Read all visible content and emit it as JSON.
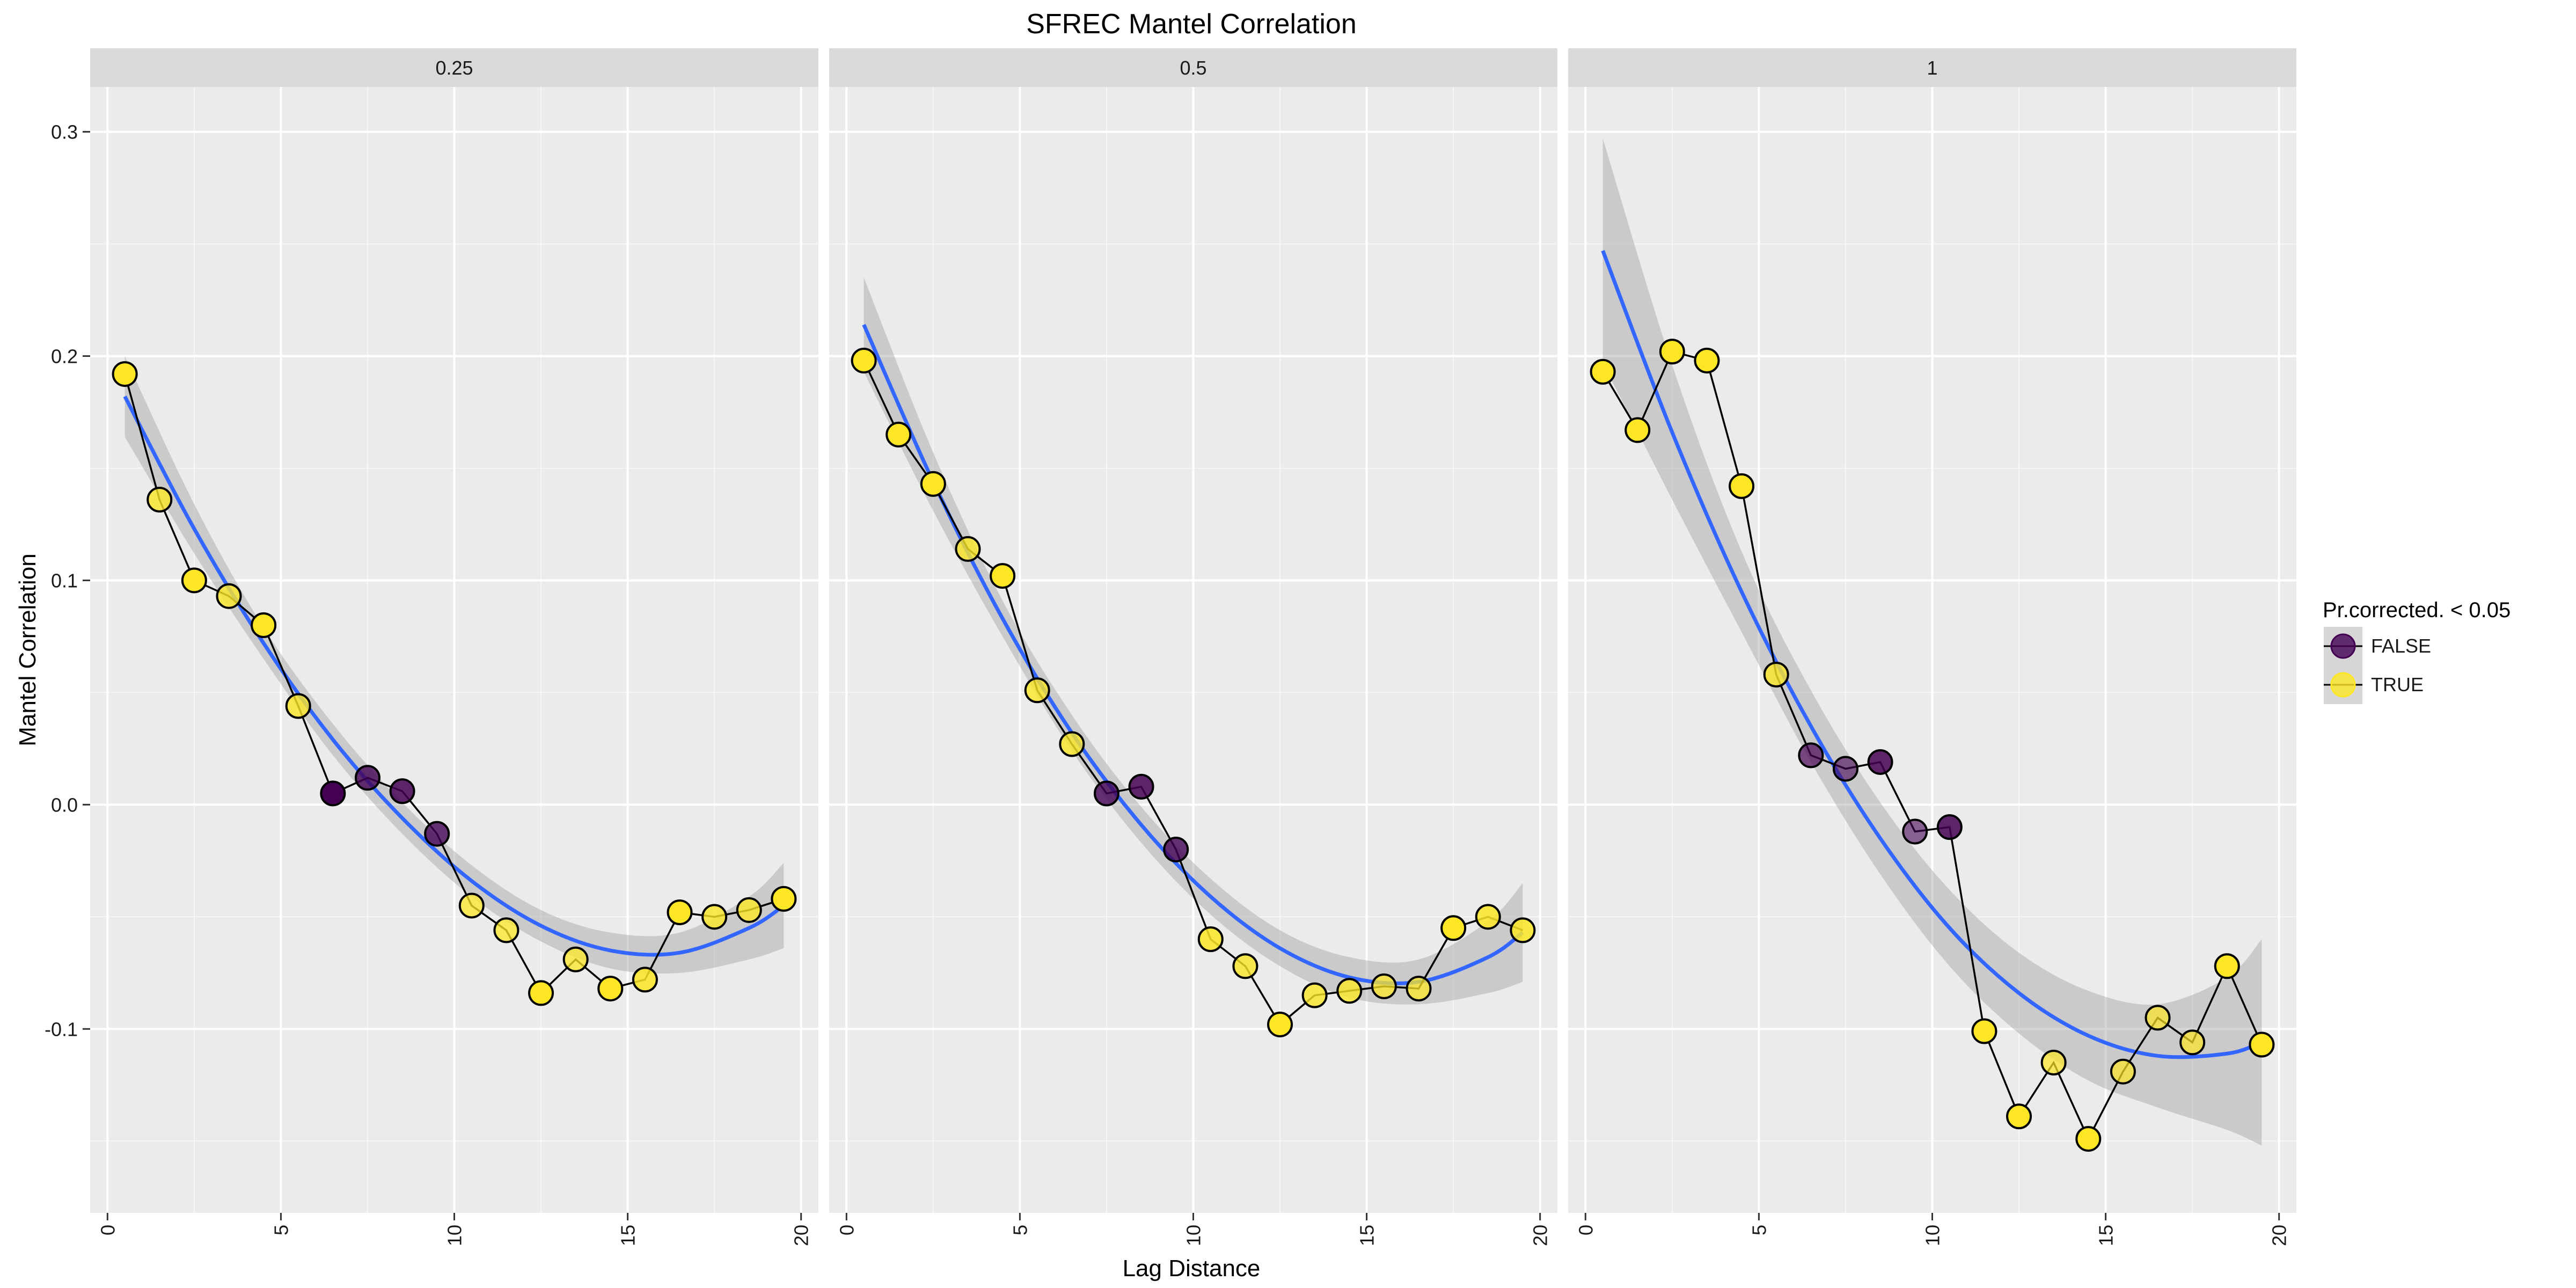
{
  "chart_data": {
    "type": "scatter",
    "title": "SFREC Mantel Correlation",
    "xlabel": "Lag Distance",
    "ylabel": "Mantel Correlation",
    "xlim": [
      -0.5,
      20.5
    ],
    "ylim": [
      -0.182,
      0.32
    ],
    "x_ticks": [
      0,
      5,
      10,
      15,
      20
    ],
    "y_ticks": [
      -0.1,
      0.0,
      0.1,
      0.2,
      0.3
    ],
    "y_tick_labels": [
      "-0.1",
      "0.0",
      "0.1",
      "0.2",
      "0.3"
    ],
    "grid": true,
    "legend": {
      "title": "Pr.corrected. < 0.05",
      "position": "right",
      "entries": [
        {
          "label": "FALSE",
          "color": "#440154"
        },
        {
          "label": "TRUE",
          "color": "#fde725"
        }
      ]
    },
    "colors": {
      "panel_bg": "#ebebeb",
      "grid": "#ffffff",
      "strip_bg": "#d9d9d9",
      "line": "#000000",
      "smooth": "#3366ff",
      "ribbon": "#999999"
    },
    "panels": [
      {
        "label": "0.25",
        "x": [
          0.5,
          1.5,
          2.5,
          3.5,
          4.5,
          5.5,
          6.5,
          7.5,
          8.5,
          9.5,
          10.5,
          11.5,
          12.5,
          13.5,
          14.5,
          15.5,
          16.5,
          17.5,
          18.5,
          19.5
        ],
        "y": [
          0.192,
          0.136,
          0.1,
          0.093,
          0.08,
          0.044,
          0.005,
          0.012,
          0.006,
          -0.013,
          -0.045,
          -0.056,
          -0.084,
          -0.069,
          -0.082,
          -0.078,
          -0.048,
          -0.05,
          -0.047,
          -0.042
        ],
        "significant": [
          true,
          true,
          true,
          true,
          true,
          true,
          false,
          false,
          false,
          false,
          true,
          true,
          true,
          true,
          true,
          true,
          true,
          true,
          true,
          true
        ],
        "point_alpha": [
          1,
          0.8,
          1,
          0.8,
          1,
          0.8,
          1,
          0.8,
          0.85,
          0.8,
          0.75,
          0.75,
          1,
          0.75,
          1,
          0.85,
          1,
          0.8,
          0.8,
          1
        ],
        "smooth_x": [
          0.5,
          2.5,
          4.5,
          6.5,
          8.5,
          10.5,
          12.5,
          14.5,
          16.5,
          18.5,
          19.5
        ],
        "smooth_y": [
          0.182,
          0.123,
          0.072,
          0.029,
          -0.006,
          -0.034,
          -0.054,
          -0.065,
          -0.066,
          -0.055,
          -0.045
        ],
        "smooth_se": [
          0.018,
          0.011,
          0.007,
          0.007,
          0.007,
          0.007,
          0.007,
          0.008,
          0.009,
          0.014,
          0.019
        ]
      },
      {
        "label": "0.5",
        "x": [
          0.5,
          1.5,
          2.5,
          3.5,
          4.5,
          5.5,
          6.5,
          7.5,
          8.5,
          9.5,
          10.5,
          11.5,
          12.5,
          13.5,
          14.5,
          15.5,
          16.5,
          17.5,
          18.5,
          19.5
        ],
        "y": [
          0.198,
          0.165,
          0.143,
          0.114,
          0.102,
          0.051,
          0.027,
          0.005,
          0.008,
          -0.02,
          -0.06,
          -0.072,
          -0.098,
          -0.085,
          -0.083,
          -0.081,
          -0.082,
          -0.055,
          -0.05,
          -0.056
        ],
        "significant": [
          true,
          true,
          true,
          true,
          true,
          true,
          true,
          false,
          false,
          false,
          true,
          true,
          true,
          true,
          true,
          true,
          true,
          true,
          true,
          true
        ],
        "point_alpha": [
          1,
          1,
          1,
          0.8,
          1,
          0.8,
          0.8,
          0.8,
          0.85,
          0.8,
          0.85,
          0.8,
          1,
          0.8,
          0.8,
          0.75,
          0.75,
          1,
          0.85,
          0.85
        ],
        "smooth_x": [
          0.5,
          2.5,
          4.5,
          6.5,
          8.5,
          10.5,
          12.5,
          14.5,
          16.5,
          18.5,
          19.5
        ],
        "smooth_y": [
          0.214,
          0.144,
          0.083,
          0.032,
          -0.009,
          -0.041,
          -0.064,
          -0.077,
          -0.079,
          -0.068,
          -0.057
        ],
        "smooth_se": [
          0.021,
          0.013,
          0.008,
          0.008,
          0.008,
          0.008,
          0.008,
          0.009,
          0.01,
          0.016,
          0.022
        ]
      },
      {
        "label": "1",
        "x": [
          0.5,
          1.5,
          2.5,
          3.5,
          4.5,
          5.5,
          6.5,
          7.5,
          8.5,
          9.5,
          10.5,
          11.5,
          12.5,
          13.5,
          14.5,
          15.5,
          16.5,
          17.5,
          18.5,
          19.5
        ],
        "y": [
          0.193,
          0.167,
          0.202,
          0.198,
          0.142,
          0.058,
          0.022,
          0.016,
          0.019,
          -0.012,
          -0.01,
          -0.101,
          -0.139,
          -0.115,
          -0.149,
          -0.119,
          -0.095,
          -0.106,
          -0.072,
          -0.107
        ],
        "significant": [
          true,
          true,
          true,
          true,
          true,
          true,
          false,
          false,
          false,
          false,
          false,
          true,
          true,
          true,
          true,
          true,
          true,
          true,
          true,
          true
        ],
        "point_alpha": [
          1,
          1,
          1,
          1,
          1,
          0.8,
          0.7,
          0.6,
          0.85,
          0.6,
          0.85,
          1,
          1,
          0.7,
          1,
          0.7,
          0.7,
          0.7,
          1,
          1
        ],
        "smooth_x": [
          0.5,
          2.5,
          4.5,
          6.5,
          8.5,
          10.5,
          12.5,
          14.5,
          16.5,
          18.5,
          19.5
        ],
        "smooth_y": [
          0.247,
          0.166,
          0.095,
          0.035,
          -0.015,
          -0.055,
          -0.084,
          -0.103,
          -0.112,
          -0.111,
          -0.106
        ],
        "smooth_se": [
          0.05,
          0.03,
          0.018,
          0.016,
          0.016,
          0.017,
          0.018,
          0.02,
          0.023,
          0.034,
          0.046
        ]
      }
    ]
  }
}
